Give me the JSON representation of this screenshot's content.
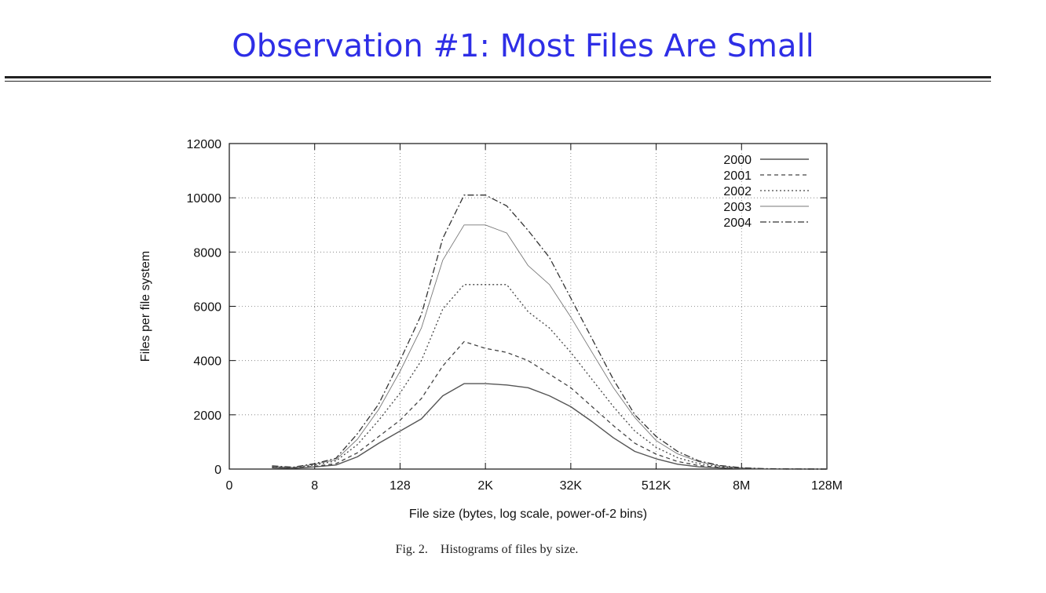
{
  "slide": {
    "title": "Observation #1: Most Files Are Small",
    "caption": "Fig. 2.    Histograms of files by size."
  },
  "chart_data": {
    "type": "line",
    "title": "",
    "xlabel": "File size (bytes, log scale, power-of-2 bins)",
    "ylabel": "Files per file system",
    "x_scale": "log2",
    "x_tick_labels": [
      "0",
      "8",
      "128",
      "2K",
      "32K",
      "512K",
      "8M",
      "128M"
    ],
    "y_ticks": [
      0,
      2000,
      4000,
      6000,
      8000,
      10000,
      12000
    ],
    "ylim": [
      0,
      12000
    ],
    "grid": true,
    "legend_position": "top-right",
    "x": [
      "2",
      "4",
      "8",
      "16",
      "32",
      "64",
      "128",
      "256",
      "512",
      "1K",
      "2K",
      "4K",
      "8K",
      "16K",
      "32K",
      "64K",
      "128K",
      "256K",
      "512K",
      "1M",
      "2M",
      "4M",
      "8M",
      "16M",
      "32M",
      "64M",
      "128M"
    ],
    "series": [
      {
        "name": "2000",
        "style": "solid",
        "values": [
          50,
          30,
          80,
          150,
          450,
          950,
          1400,
          1850,
          2700,
          3150,
          3150,
          3100,
          3000,
          2700,
          2300,
          1750,
          1150,
          650,
          380,
          180,
          80,
          40,
          15,
          5,
          2,
          1,
          0
        ]
      },
      {
        "name": "2001",
        "style": "dashed",
        "values": [
          60,
          40,
          100,
          200,
          600,
          1200,
          1800,
          2600,
          3800,
          4700,
          4450,
          4300,
          4000,
          3500,
          3000,
          2300,
          1600,
          950,
          550,
          280,
          130,
          60,
          25,
          10,
          4,
          1,
          0
        ]
      },
      {
        "name": "2002",
        "style": "dotted",
        "values": [
          80,
          50,
          150,
          300,
          900,
          1800,
          2800,
          4000,
          5900,
          6800,
          6800,
          6800,
          5800,
          5200,
          4300,
          3300,
          2300,
          1400,
          800,
          420,
          200,
          90,
          35,
          12,
          4,
          1,
          0
        ]
      },
      {
        "name": "2003",
        "style": "light",
        "values": [
          100,
          60,
          180,
          350,
          1100,
          2200,
          3600,
          5200,
          7700,
          9000,
          9000,
          8700,
          7500,
          6800,
          5600,
          4300,
          3000,
          1900,
          1050,
          560,
          270,
          120,
          45,
          15,
          5,
          1,
          0
        ]
      },
      {
        "name": "2004",
        "style": "dashdot",
        "values": [
          120,
          70,
          200,
          400,
          1300,
          2400,
          4000,
          5700,
          8500,
          10100,
          10100,
          9700,
          8800,
          7800,
          6300,
          4800,
          3300,
          2000,
          1200,
          650,
          300,
          130,
          50,
          18,
          6,
          2,
          0
        ]
      }
    ]
  }
}
